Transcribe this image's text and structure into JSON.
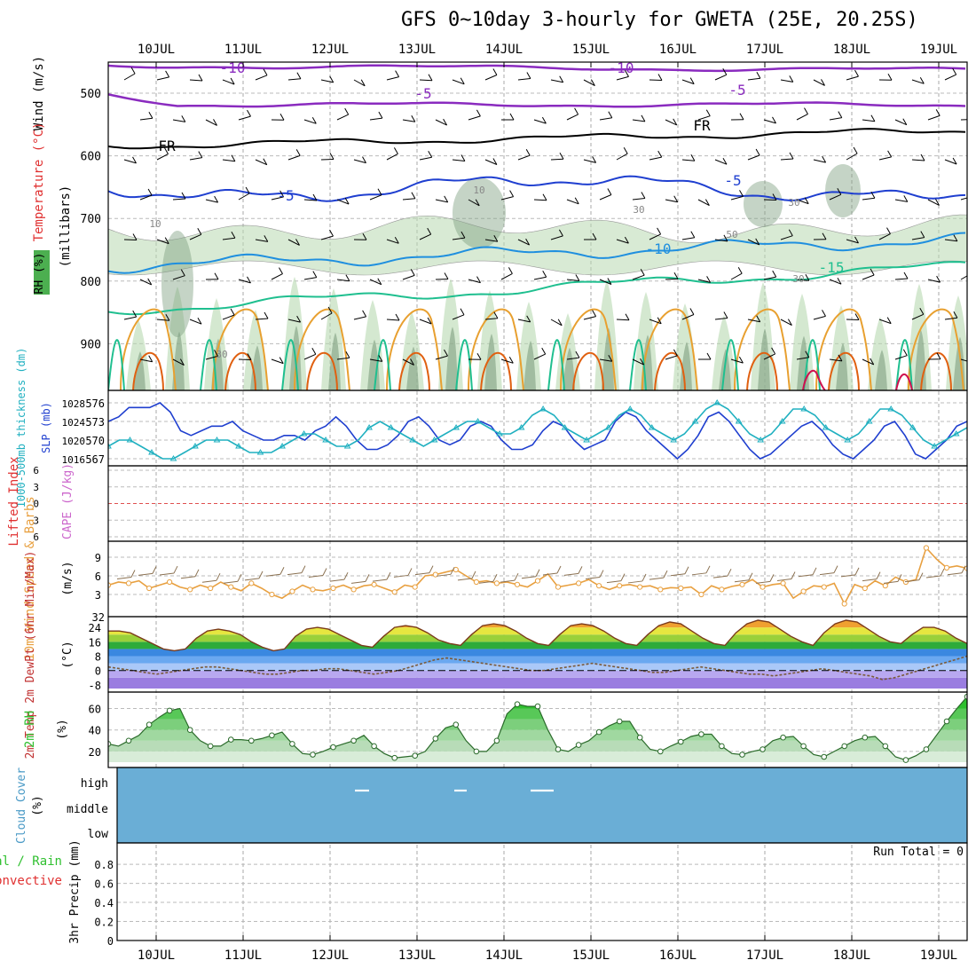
{
  "title": "GFS 0~10day 3-hourly for GWETA (25E, 20.25S)",
  "dates": [
    "10JUL",
    "11JUL",
    "12JUL",
    "13JUL",
    "14JUL",
    "15JUL",
    "16JUL",
    "17JUL",
    "18JUL",
    "19JUL"
  ],
  "colors": {
    "rh_fill": "#b8d8b0",
    "rh_dark": "#7f9f80",
    "t_minus10": "#8a2bbf",
    "t_fr": "#000000",
    "t_5": "#1f3fd0",
    "t_10": "#1f8fdf",
    "t_15": "#1fbf8f",
    "t_warm": "#e8a030",
    "t_hot": "#e06010",
    "slp": "#1f3fcf",
    "thickness": "#20b0c0",
    "wind10": "#e8a040",
    "rh2m": "#30c030",
    "cloud": "#6aaed6",
    "precip_grid": "#bbbbbb"
  },
  "panels": {
    "upper": {
      "ylabel_wind": "Wind (m/s)",
      "ylabel_temp": "Temperature (°C)",
      "ylabel_rh": "RH (%)",
      "ylabel_mb": "(millibars)",
      "yticks": [
        "500",
        "600",
        "700",
        "800",
        "900"
      ],
      "contour_labels": [
        "-10",
        "-10",
        "-5",
        "-5",
        "FR",
        "FR",
        "-5",
        "-5",
        "-10",
        "-15",
        "10",
        "30",
        "30",
        "30",
        "50",
        "10",
        "30"
      ]
    },
    "slp": {
      "ylabel_thick": "1000-500mb thickness (dm)",
      "ylabel_slp": "SLP (mb)",
      "left_ticks": [
        "576",
        "573",
        "570",
        "567"
      ],
      "right_ticks": [
        "1028",
        "1024",
        "1020",
        "1016"
      ]
    },
    "cape": {
      "ylabel_li": "Lifted Index",
      "ylabel_cape": "CAPE (J/kg)",
      "left_ticks": [
        "6",
        "3",
        "0",
        "3",
        "6"
      ]
    },
    "wind10": {
      "ylabel": "10m Wind Speed & Barbs",
      "unit": "(m/s)",
      "yticks": [
        "9",
        "6",
        "3",
        "32"
      ]
    },
    "temp2m": {
      "ylabel": "2m Temp 2m DewPt (6hr Min/Max)",
      "unit": "(°C)",
      "yticks": [
        "24",
        "16",
        "8",
        "0",
        "-8"
      ]
    },
    "rh2m": {
      "ylabel": "2m RH",
      "unit": "(%)",
      "yticks": [
        "60",
        "40",
        "20"
      ]
    },
    "cloud": {
      "ylabel": "Cloud Cover",
      "unit": "(%)",
      "levels": [
        "high",
        "middle",
        "low"
      ]
    },
    "precip": {
      "ylabel_total": "Total / Rain",
      "ylabel_conv": "Convective",
      "ylabel": "3hr Precip (mm)",
      "yticks": [
        "0.8",
        "0.6",
        "0.4",
        "0.2",
        "0"
      ],
      "run_total": "Run Total = 0"
    }
  },
  "chart_data": [
    {
      "type": "line",
      "title": "SLP (mb) and 1000-500mb thickness (dm)",
      "x_start": "10JUL 00Z -0.5d",
      "series": [
        {
          "name": "SLP (mb)",
          "values": [
            1024,
            1025,
            1027,
            1027,
            1027,
            1028,
            1026,
            1022,
            1021,
            1022,
            1023,
            1023,
            1024,
            1022,
            1021,
            1020,
            1020,
            1021,
            1021,
            1020,
            1022,
            1023,
            1025,
            1023,
            1020,
            1018,
            1018,
            1019,
            1021,
            1024,
            1025,
            1023,
            1020,
            1019,
            1020,
            1023,
            1024,
            1023,
            1020,
            1018,
            1018,
            1019,
            1022,
            1024,
            1023,
            1020,
            1018,
            1019,
            1020,
            1024,
            1026,
            1025,
            1022,
            1020,
            1018,
            1016,
            1018,
            1021,
            1025,
            1026,
            1024,
            1021,
            1018,
            1016,
            1017,
            1019,
            1021,
            1023,
            1024,
            1022,
            1019,
            1017,
            1016,
            1018,
            1020,
            1023,
            1024,
            1021,
            1017,
            1016,
            1018,
            1020,
            1023,
            1024
          ]
        },
        {
          "name": "1000-500mb thickness (dm)",
          "values": [
            569,
            570,
            570,
            569,
            568,
            567,
            567,
            568,
            569,
            570,
            570,
            570,
            569,
            568,
            568,
            568,
            569,
            570,
            571,
            571,
            570,
            569,
            569,
            570,
            572,
            573,
            572,
            571,
            570,
            569,
            570,
            571,
            572,
            573,
            573,
            572,
            571,
            571,
            572,
            574,
            575,
            574,
            572,
            571,
            570,
            571,
            572,
            574,
            575,
            574,
            572,
            571,
            570,
            571,
            573,
            575,
            576,
            575,
            573,
            571,
            570,
            571,
            573,
            575,
            575,
            574,
            572,
            571,
            570,
            571,
            573,
            575,
            575,
            574,
            572,
            570,
            569,
            570,
            571,
            572
          ]
        }
      ]
    },
    {
      "type": "line",
      "title": "10m Wind Speed (m/s)",
      "series": [
        {
          "name": "10m Wind Speed",
          "values": [
            4.5,
            5,
            4.8,
            5.2,
            4,
            4.5,
            5,
            4.2,
            3.8,
            4.5,
            4,
            5,
            4.2,
            3.6,
            4.8,
            4,
            3,
            2.4,
            3.5,
            4.5,
            3.8,
            3.6,
            4,
            4.5,
            3.8,
            4.4,
            4.6,
            4,
            3.4,
            4.5,
            4.2,
            6,
            6.2,
            6.6,
            7,
            6,
            5,
            5.2,
            4.8,
            5,
            4.6,
            4.2,
            5.2,
            6.3,
            4.2,
            4.5,
            4.8,
            5.4,
            4.4,
            3.8,
            4.4,
            4.6,
            4.2,
            4.4,
            3.8,
            4.1,
            4,
            4.2,
            3,
            4.4,
            3.8,
            4.3,
            4.6,
            5.4,
            4.2,
            4.6,
            4.8,
            2.4,
            3.5,
            4.4,
            4.2,
            4.8,
            1.5,
            4.6,
            4,
            5.2,
            4.4,
            5.8,
            5,
            5.4,
            10.5,
            8.7,
            7.3,
            7.6,
            7.2
          ]
        }
      ]
    },
    {
      "type": "area",
      "title": "2m RH (%)",
      "series": [
        {
          "name": "2m RH",
          "values": [
            27,
            25,
            30,
            35,
            45,
            52,
            58,
            60,
            40,
            30,
            25,
            25,
            31,
            31,
            30,
            32,
            35,
            38,
            27,
            18,
            17,
            20,
            24,
            27,
            30,
            35,
            25,
            18,
            14,
            15,
            16,
            20,
            32,
            42,
            45,
            30,
            20,
            20,
            30,
            55,
            64,
            62,
            62,
            40,
            22,
            20,
            26,
            30,
            38,
            44,
            48,
            48,
            33,
            22,
            20,
            25,
            29,
            34,
            36,
            36,
            25,
            18,
            17,
            20,
            22,
            30,
            33,
            34,
            25,
            17,
            15,
            20,
            25,
            30,
            33,
            34,
            25,
            15,
            12,
            16,
            22,
            35,
            48,
            60,
            71
          ]
        }
      ]
    },
    {
      "type": "area",
      "title": "2m Temp (°C)",
      "series": [
        {
          "name": "2m Temp",
          "values": [
            22,
            22,
            21,
            18,
            15,
            12,
            11,
            12,
            18,
            22,
            23,
            22,
            20,
            16,
            13,
            11,
            12,
            19,
            23,
            24,
            23,
            20,
            17,
            14,
            13,
            19,
            24,
            25,
            24,
            21,
            17,
            15,
            14,
            20,
            25,
            26,
            25,
            22,
            18,
            15,
            14,
            20,
            25,
            26,
            25,
            22,
            18,
            15,
            14,
            20,
            25,
            27,
            26,
            22,
            18,
            15,
            14,
            21,
            26,
            28,
            27,
            23,
            19,
            16,
            14,
            21,
            26,
            28,
            27,
            23,
            19,
            16,
            15,
            20,
            24,
            24,
            22,
            18,
            15
          ]
        },
        {
          "name": "2m DewPt",
          "values": [
            2,
            1,
            0,
            -1,
            -2,
            -1,
            0,
            1,
            2,
            2,
            1,
            0,
            -1,
            -2,
            -2,
            -1,
            0,
            0,
            1,
            1,
            0,
            -1,
            -2,
            -1,
            0,
            2,
            4,
            6,
            7,
            6,
            5,
            4,
            3,
            2,
            1,
            0,
            0,
            1,
            2,
            3,
            4,
            3,
            2,
            1,
            0,
            -1,
            -1,
            0,
            1,
            2,
            1,
            0,
            -1,
            -2,
            -2,
            -3,
            -2,
            -1,
            0,
            1,
            0,
            -1,
            -2,
            -3,
            -5,
            -4,
            -2,
            0,
            2,
            4,
            6,
            8
          ]
        }
      ]
    }
  ]
}
